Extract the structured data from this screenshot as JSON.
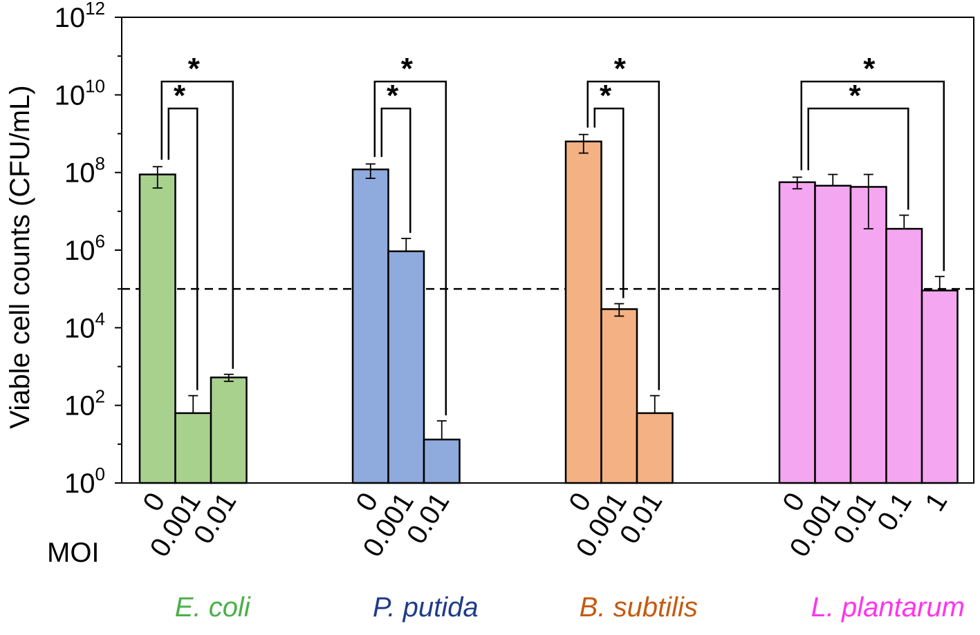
{
  "chart_data": {
    "type": "bar",
    "yscale": "log10",
    "ylabel": "Viable cell counts (CFU/mL)",
    "xlabel": "MOI",
    "ylim_exponents": [
      0,
      12
    ],
    "y_ticks": [
      {
        "base": "10",
        "exp": "0"
      },
      {
        "base": "10",
        "exp": "2"
      },
      {
        "base": "10",
        "exp": "4"
      },
      {
        "base": "10",
        "exp": "6"
      },
      {
        "base": "10",
        "exp": "8"
      },
      {
        "base": "10",
        "exp": "10"
      },
      {
        "base": "10",
        "exp": "12"
      }
    ],
    "detection_limit_log10": 5,
    "groups": [
      {
        "name": "E. coli",
        "color": "#a9d18e",
        "label_color": "#4ab04a",
        "bars": [
          {
            "moi": "0",
            "log10_value": 7.95,
            "err_low": 7.6,
            "err_high": 8.15
          },
          {
            "moi": "0.001",
            "log10_value": 1.8,
            "err_low": 1.8,
            "err_high": 2.25
          },
          {
            "moi": "0.01",
            "log10_value": 2.72,
            "err_low": 2.62,
            "err_high": 2.8
          }
        ],
        "significance": [
          {
            "from": 0,
            "to": 1,
            "label": "*"
          },
          {
            "from": 0,
            "to": 2,
            "label": "*"
          }
        ]
      },
      {
        "name": "P. putida",
        "color": "#8faadc",
        "label_color": "#1f3c88",
        "bars": [
          {
            "moi": "0",
            "log10_value": 8.08,
            "err_low": 7.85,
            "err_high": 8.22
          },
          {
            "moi": "0.001",
            "log10_value": 5.97,
            "err_low": 5.97,
            "err_high": 6.3
          },
          {
            "moi": "0.01",
            "log10_value": 1.12,
            "err_low": 1.12,
            "err_high": 1.6
          }
        ],
        "significance": [
          {
            "from": 0,
            "to": 1,
            "label": "*"
          },
          {
            "from": 0,
            "to": 2,
            "label": "*"
          }
        ]
      },
      {
        "name": "B. subtilis",
        "color": "#f4b183",
        "label_color": "#c55a11",
        "bars": [
          {
            "moi": "0",
            "log10_value": 8.8,
            "err_low": 8.5,
            "err_high": 8.98
          },
          {
            "moi": "0.001",
            "log10_value": 4.48,
            "err_low": 4.3,
            "err_high": 4.62
          },
          {
            "moi": "0.01",
            "log10_value": 1.8,
            "err_low": 1.8,
            "err_high": 2.25
          }
        ],
        "significance": [
          {
            "from": 0,
            "to": 1,
            "label": "*"
          },
          {
            "from": 0,
            "to": 2,
            "label": "*"
          }
        ]
      },
      {
        "name": "L. plantarum",
        "color": "#f5a6f0",
        "label_color": "#ff33ee",
        "bars": [
          {
            "moi": "0",
            "log10_value": 7.75,
            "err_low": 7.58,
            "err_high": 7.88
          },
          {
            "moi": "0.001",
            "log10_value": 7.66,
            "err_low": 7.66,
            "err_high": 7.95
          },
          {
            "moi": "0.01",
            "log10_value": 7.63,
            "err_low": 6.55,
            "err_high": 7.95
          },
          {
            "moi": "0.1",
            "log10_value": 6.55,
            "err_low": 6.55,
            "err_high": 6.9
          },
          {
            "moi": "1",
            "log10_value": 4.96,
            "err_low": 4.96,
            "err_high": 5.32
          }
        ],
        "significance": [
          {
            "from": 0,
            "to": 3,
            "label": "*"
          },
          {
            "from": 0,
            "to": 4,
            "label": "*"
          }
        ]
      }
    ]
  }
}
